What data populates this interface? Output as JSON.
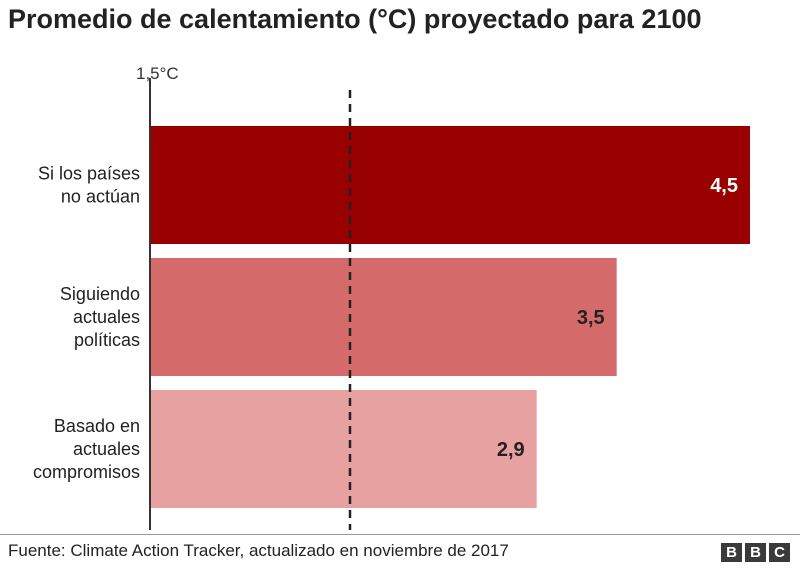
{
  "title": "Promedio de calentamiento (°C) proyectado para 2100",
  "chart_data": {
    "type": "bar",
    "orientation": "horizontal",
    "title": "Promedio de calentamiento (°C) proyectado para 2100",
    "categories": [
      [
        "Si los países",
        "no actúan"
      ],
      [
        "Siguiendo",
        "actuales",
        "políticas"
      ],
      [
        "Basado en",
        "actuales",
        "compromisos"
      ]
    ],
    "values": [
      4.5,
      3.5,
      2.9
    ],
    "value_labels": [
      "4,5",
      "3,5",
      "2,9"
    ],
    "colors": [
      "#990000",
      "#d46a6a",
      "#e8a1a1"
    ],
    "label_colors": [
      "#ffffff",
      "#222222",
      "#222222"
    ],
    "reference_line": {
      "value": 1.5,
      "label": "1,5°C",
      "style": "dashed"
    },
    "xlim": [
      0,
      4.65
    ],
    "grid": false,
    "legend": "none"
  },
  "footer": {
    "source": "Fuente: Climate Action Tracker, actualizado en noviembre de 2017",
    "logo": [
      "B",
      "B",
      "C"
    ]
  }
}
